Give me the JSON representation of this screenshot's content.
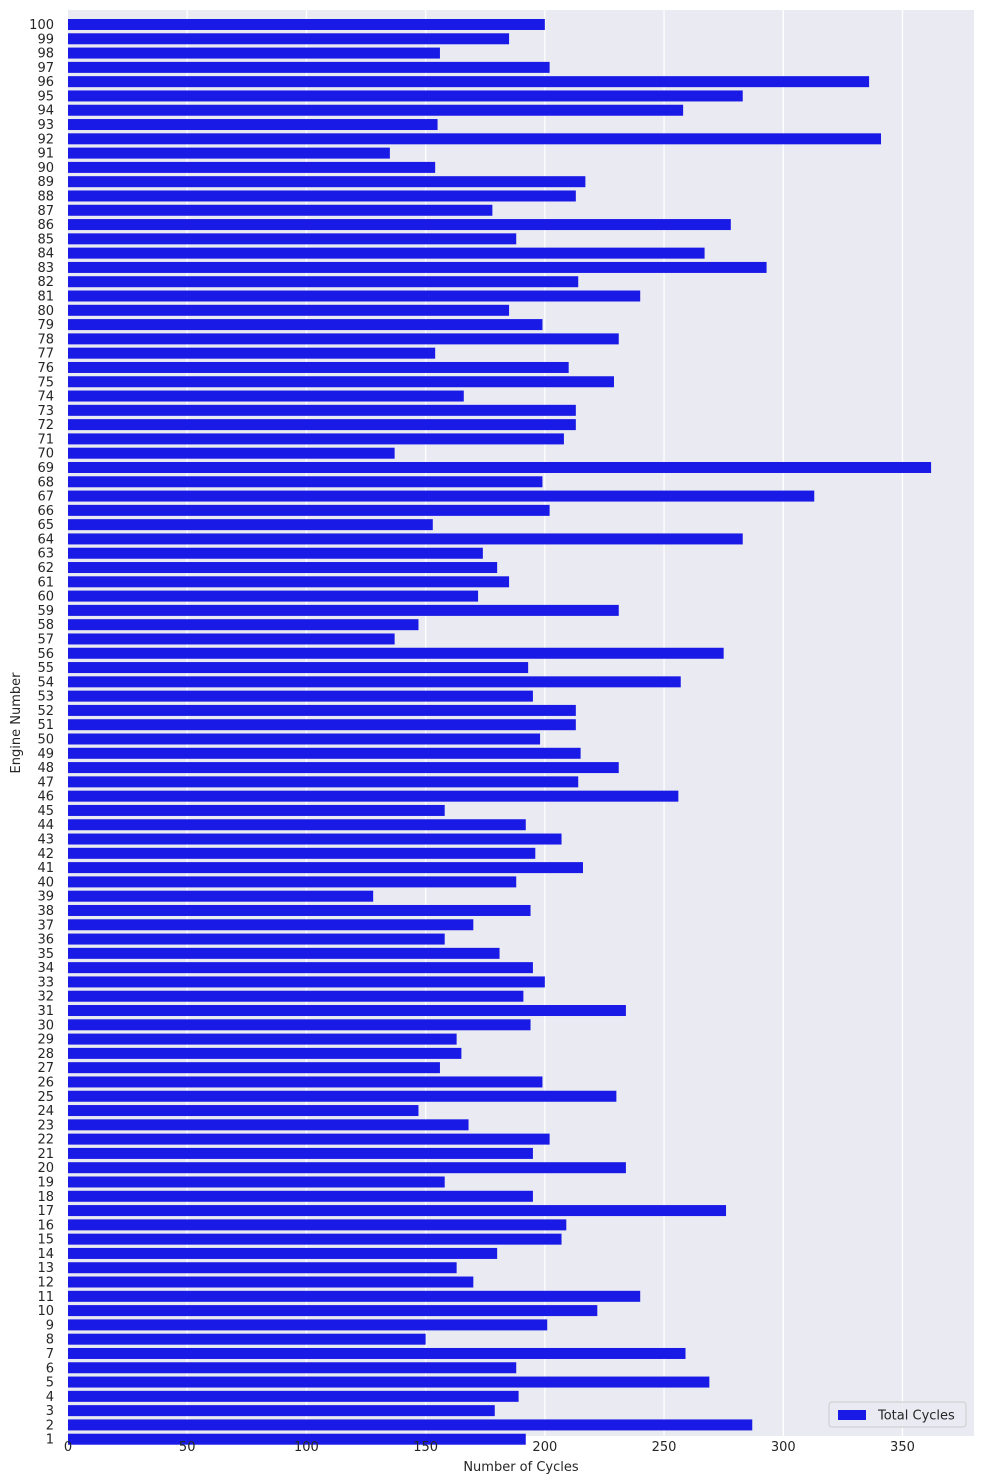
{
  "chart_data": {
    "type": "bar",
    "orientation": "horizontal",
    "categories": [
      "100",
      "99",
      "98",
      "97",
      "96",
      "95",
      "94",
      "93",
      "92",
      "91",
      "90",
      "89",
      "88",
      "87",
      "86",
      "85",
      "84",
      "83",
      "82",
      "81",
      "80",
      "79",
      "78",
      "77",
      "76",
      "75",
      "74",
      "73",
      "72",
      "71",
      "70",
      "69",
      "68",
      "67",
      "66",
      "65",
      "64",
      "63",
      "62",
      "61",
      "60",
      "59",
      "58",
      "57",
      "56",
      "55",
      "54",
      "53",
      "52",
      "51",
      "50",
      "49",
      "48",
      "47",
      "46",
      "45",
      "44",
      "43",
      "42",
      "41",
      "40",
      "39",
      "38",
      "37",
      "36",
      "35",
      "34",
      "33",
      "32",
      "31",
      "30",
      "29",
      "28",
      "27",
      "26",
      "25",
      "24",
      "23",
      "22",
      "21",
      "20",
      "19",
      "18",
      "17",
      "16",
      "15",
      "14",
      "13",
      "12",
      "11",
      "10",
      "9",
      "8",
      "7",
      "6",
      "5",
      "4",
      "3",
      "2",
      "1"
    ],
    "series": [
      {
        "name": "Total Cycles",
        "color": "#1a1ae6",
        "values": [
          200,
          185,
          156,
          202,
          336,
          283,
          258,
          155,
          341,
          135,
          154,
          217,
          213,
          178,
          278,
          188,
          267,
          293,
          214,
          240,
          185,
          199,
          231,
          154,
          210,
          229,
          166,
          213,
          213,
          208,
          137,
          362,
          199,
          313,
          202,
          153,
          283,
          174,
          180,
          185,
          172,
          231,
          147,
          137,
          275,
          193,
          257,
          195,
          213,
          213,
          198,
          215,
          231,
          214,
          256,
          158,
          192,
          207,
          196,
          216,
          188,
          128,
          194,
          170,
          158,
          181,
          195,
          200,
          191,
          234,
          194,
          163,
          165,
          156,
          199,
          230,
          147,
          168,
          202,
          195,
          234,
          158,
          195,
          276,
          209,
          207,
          180,
          163,
          170,
          240,
          222,
          201,
          150,
          259,
          188,
          269,
          189,
          179,
          287,
          192
        ]
      }
    ],
    "xlabel": "Number of Cycles",
    "ylabel": "Engine Number",
    "xlim": [
      0,
      380
    ],
    "xticks": [
      0,
      50,
      100,
      150,
      200,
      250,
      300,
      350
    ],
    "grid": true,
    "legend": {
      "position": "bottom-right",
      "label": "Total Cycles"
    },
    "colors": {
      "background": "#eaeaf2",
      "grid": "#ffffff",
      "bar": "#1a1ae6"
    }
  }
}
